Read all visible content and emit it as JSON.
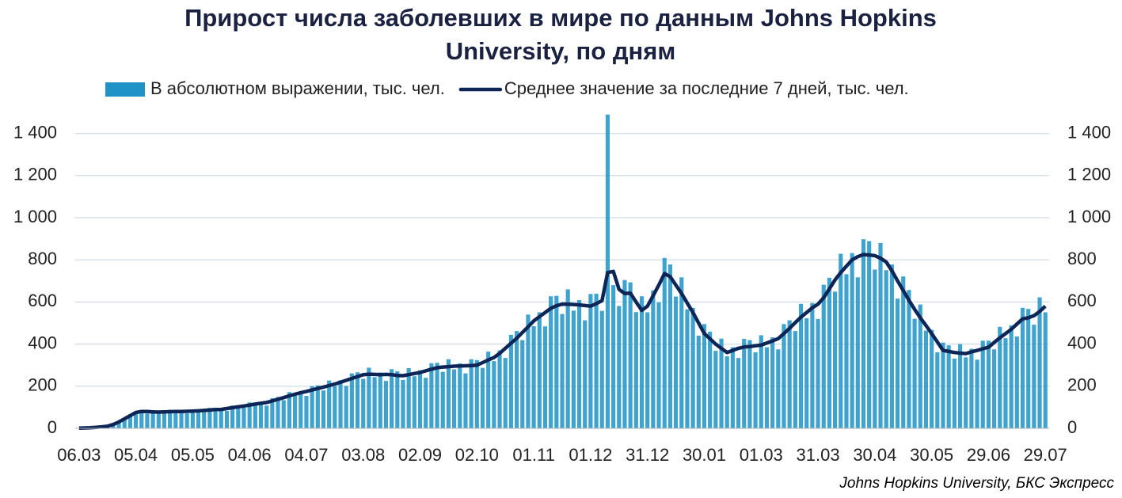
{
  "chart_data": {
    "type": "bar",
    "title": "Прирост числа заболевших в мире по данным Johns Hopkins University, по дням",
    "source": "Johns Hopkins University, БКС Экспресс",
    "x": [
      0,
      3,
      6,
      9,
      12,
      15,
      18,
      21,
      24,
      27,
      30,
      33,
      36,
      39,
      42,
      45,
      48,
      51,
      54,
      57,
      60,
      63,
      66,
      69,
      72,
      75,
      78,
      81,
      84,
      87,
      90,
      93,
      96,
      99,
      102,
      105,
      108,
      111,
      114,
      117,
      120,
      123,
      126,
      129,
      132,
      135,
      138,
      141,
      144,
      147,
      150,
      153,
      156,
      159,
      162,
      165,
      168,
      171,
      174,
      177,
      180,
      183,
      186,
      189,
      192,
      195,
      198,
      201,
      204,
      207,
      210,
      213,
      216,
      219,
      222,
      225,
      228,
      231,
      234,
      237,
      240,
      243,
      246,
      249,
      252,
      255,
      258,
      261,
      264,
      267,
      270,
      273,
      276,
      279,
      282,
      285,
      288,
      291,
      294,
      297,
      300,
      303,
      306,
      309,
      312,
      315,
      318,
      321,
      324,
      327,
      330,
      333,
      336,
      339,
      342,
      345,
      348,
      351,
      354,
      357,
      360,
      363,
      366,
      369,
      372,
      375,
      378,
      381,
      384,
      387,
      390,
      393,
      396,
      399,
      402,
      405,
      408,
      411,
      414,
      417,
      420,
      423,
      426,
      429,
      432,
      435,
      438,
      441,
      444,
      447,
      450,
      453,
      456,
      459,
      462,
      465,
      468,
      471,
      474,
      477,
      480,
      483,
      486,
      489,
      492,
      495,
      498,
      501,
      504,
      507,
      510
    ],
    "xlim": [
      -2,
      512
    ],
    "xticks": [
      {
        "value": 0,
        "label": "06.03"
      },
      {
        "value": 30,
        "label": "05.04"
      },
      {
        "value": 60,
        "label": "05.05"
      },
      {
        "value": 90,
        "label": "04.06"
      },
      {
        "value": 120,
        "label": "04.07"
      },
      {
        "value": 150,
        "label": "03.08"
      },
      {
        "value": 180,
        "label": "02.09"
      },
      {
        "value": 210,
        "label": "02.10"
      },
      {
        "value": 240,
        "label": "01.11"
      },
      {
        "value": 270,
        "label": "01.12"
      },
      {
        "value": 300,
        "label": "31.12"
      },
      {
        "value": 330,
        "label": "30.01"
      },
      {
        "value": 360,
        "label": "01.03"
      },
      {
        "value": 390,
        "label": "31.03"
      },
      {
        "value": 420,
        "label": "30.04"
      },
      {
        "value": 450,
        "label": "30.05"
      },
      {
        "value": 480,
        "label": "29.06"
      },
      {
        "value": 510,
        "label": "29.07"
      }
    ],
    "ylim": [
      0,
      1500
    ],
    "yticks": [
      0,
      200,
      400,
      600,
      800,
      {
        "value": 1000,
        "label": "1 000"
      },
      {
        "value": 1200,
        "label": "1 200"
      },
      {
        "value": 1400,
        "label": "1 400"
      }
    ],
    "y2lim": [
      0,
      1500
    ],
    "y2ticks": [
      0,
      200,
      400,
      600,
      800,
      {
        "value": 1000,
        "label": "1 000"
      },
      {
        "value": 1200,
        "label": "1 200"
      },
      {
        "value": 1400,
        "label": "1 400"
      }
    ],
    "grid": true,
    "legend": "top",
    "series": [
      {
        "name": "В абсолютном выражении, тыс. чел.",
        "type": "bar",
        "color": "#1f93c6",
        "values": [
          1,
          2,
          3,
          5,
          7,
          9,
          20,
          32,
          41,
          67,
          71,
          83,
          70,
          86,
          83,
          72,
          88,
          76,
          83,
          71,
          90,
          90,
          78,
          97,
          85,
          94,
          83,
          108,
          110,
          98,
          123,
          109,
          124,
          108,
          143,
          149,
          134,
          172,
          154,
          176,
          154,
          200,
          204,
          180,
          227,
          200,
          228,
          201,
          261,
          266,
          235,
          288,
          243,
          265,
          225,
          281,
          271,
          230,
          286,
          247,
          276,
          240,
          309,
          311,
          268,
          328,
          280,
          308,
          261,
          328,
          324,
          287,
          364,
          319,
          370,
          334,
          444,
          462,
          419,
          540,
          485,
          551,
          484,
          627,
          629,
          543,
          660,
          559,
          609,
          513,
          638,
          639,
          558,
          1490,
          680,
          581,
          704,
          693,
          552,
          627,
          551,
          655,
          598,
          809,
          778,
          626,
          717,
          565,
          572,
          440,
          495,
          459,
          368,
          426,
          342,
          385,
          334,
          425,
          419,
          361,
          442,
          385,
          432,
          375,
          495,
          513,
          462,
          591,
          523,
          595,
          519,
          682,
          715,
          649,
          829,
          732,
          832,
          717,
          898,
          889,
          754,
          880,
          751,
          778,
          616,
          721,
          657,
          520,
          588,
          464,
          468,
          361,
          407,
          394,
          331,
          400,
          337,
          378,
          326,
          416,
          416,
          375,
          482,
          428,
          489,
          436,
          572,
          567,
          492,
          622,
          551
        ]
      },
      {
        "name": "Среднее значение за последние 7 дней, тыс. чел.",
        "type": "line",
        "color": "#0d2657",
        "values": [
          1,
          2,
          3,
          5,
          7,
          10,
          18,
          30,
          45,
          60,
          75,
          80,
          80,
          78,
          77,
          78,
          79,
          80,
          80,
          81,
          82,
          83,
          85,
          87,
          89,
          90,
          94,
          98,
          102,
          106,
          110,
          115,
          119,
          123,
          130,
          138,
          146,
          154,
          162,
          169,
          175,
          182,
          189,
          196,
          203,
          210,
          219,
          228,
          237,
          246,
          255,
          257,
          256,
          255,
          256,
          255,
          251,
          250,
          255,
          260,
          265,
          273,
          281,
          288,
          291,
          293,
          295,
          296,
          297,
          298,
          300,
          312,
          325,
          336,
          356,
          380,
          404,
          428,
          455,
          482,
          510,
          530,
          550,
          570,
          582,
          590,
          589,
          588,
          586,
          583,
          580,
          592,
          606,
          740,
          745,
          660,
          640,
          642,
          600,
          560,
          580,
          630,
          680,
          735,
          720,
          680,
          640,
          595,
          550,
          500,
          450,
          425,
          400,
          380,
          360,
          370,
          380,
          386,
          388,
          392,
          395,
          405,
          415,
          426,
          450,
          475,
          502,
          528,
          550,
          572,
          590,
          620,
          662,
          705,
          740,
          770,
          800,
          815,
          825,
          823,
          820,
          808,
          790,
          748,
          700,
          655,
          608,
          565,
          525,
          488,
          450,
          410,
          370,
          365,
          360,
          357,
          355,
          363,
          370,
          378,
          385,
          408,
          430,
          450,
          470,
          495,
          520,
          525,
          535,
          555,
          580
        ]
      }
    ]
  }
}
